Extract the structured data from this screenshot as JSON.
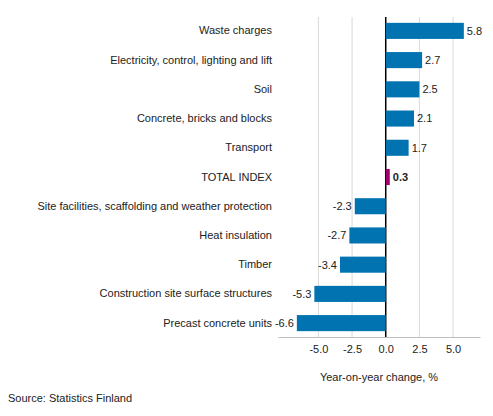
{
  "chart_data": {
    "type": "bar",
    "orientation": "horizontal",
    "categories": [
      "Waste charges",
      "Electricity, control, lighting and lift",
      "Soil",
      "Concrete, bricks and blocks",
      "Transport",
      "TOTAL INDEX",
      "Site facilities, scaffolding and weather protection",
      "Heat insulation",
      "Timber",
      "Construction site surface structures",
      "Precast concrete units"
    ],
    "values": [
      5.8,
      2.7,
      2.5,
      2.1,
      1.7,
      0.3,
      -2.3,
      -2.7,
      -3.4,
      -5.3,
      -6.6
    ],
    "colors": [
      "#0073b0",
      "#0073b0",
      "#0073b0",
      "#0073b0",
      "#0073b0",
      "#a0006e",
      "#0073b0",
      "#0073b0",
      "#0073b0",
      "#0073b0",
      "#0073b0"
    ],
    "xlim": [
      -8,
      7
    ],
    "xticks": [
      {
        "value": -5,
        "label": "-5.0"
      },
      {
        "value": -2.5,
        "label": "-2.5"
      },
      {
        "value": 0,
        "label": "0.0"
      },
      {
        "value": 2.5,
        "label": "2.5"
      },
      {
        "value": 5,
        "label": "5.0"
      }
    ],
    "x_label": "Year-on-year change, %",
    "annotations": [
      "Source: Statistics Finland"
    ],
    "grid": true,
    "data_labels": true
  }
}
